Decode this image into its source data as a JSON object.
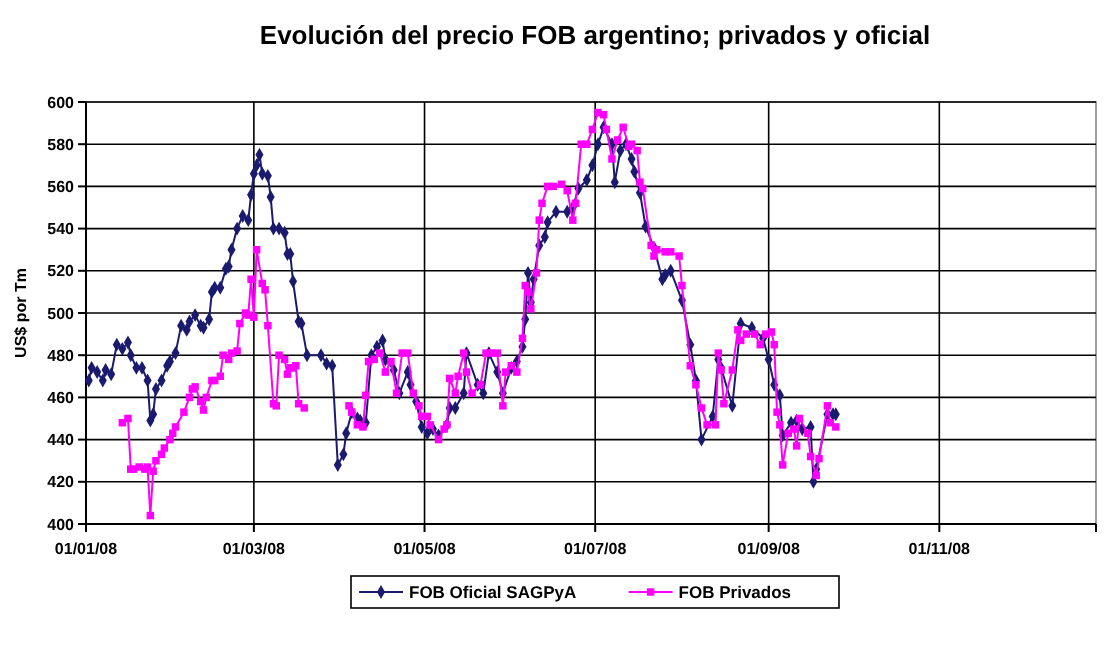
{
  "chart_data": {
    "type": "line",
    "title": "Evolución del precio FOB argentino; privados y oficial",
    "ylabel": "US$ por Tm",
    "xlim": [
      "2008-01-01",
      "2008-12-27"
    ],
    "xticks": [
      {
        "value": "2008-01-01",
        "label": "01/01/08"
      },
      {
        "value": "2008-03-01",
        "label": "01/03/08"
      },
      {
        "value": "2008-05-01",
        "label": "01/05/08"
      },
      {
        "value": "2008-07-01",
        "label": "01/07/08"
      },
      {
        "value": "2008-09-01",
        "label": "01/09/08"
      },
      {
        "value": "2008-11-01",
        "label": "01/11/08"
      }
    ],
    "ylim": [
      400,
      600
    ],
    "yticks": [
      400,
      420,
      440,
      460,
      480,
      500,
      520,
      540,
      560,
      580,
      600
    ],
    "grid": true,
    "legend": "bottom",
    "line_style": "solid",
    "series": [
      {
        "name": "FOB Oficial SAGPyA",
        "color": "#1a1a6e",
        "marker": "diamond",
        "x": [
          "2008-01-02",
          "2008-01-03",
          "2008-01-05",
          "2008-01-07",
          "2008-01-08",
          "2008-01-10",
          "2008-01-12",
          "2008-01-14",
          "2008-01-16",
          "2008-01-17",
          "2008-01-19",
          "2008-01-21",
          "2008-01-23",
          "2008-01-24",
          "2008-01-25",
          "2008-01-26",
          "2008-01-28",
          "2008-01-30",
          "2008-01-31",
          "2008-02-02",
          "2008-02-04",
          "2008-02-06",
          "2008-02-07",
          "2008-02-09",
          "2008-02-11",
          "2008-02-12",
          "2008-02-14",
          "2008-02-15",
          "2008-02-16",
          "2008-02-18",
          "2008-02-20",
          "2008-02-21",
          "2008-02-22",
          "2008-02-24",
          "2008-02-26",
          "2008-02-28",
          "2008-02-29",
          "2008-03-01",
          "2008-03-02",
          "2008-03-03",
          "2008-03-04",
          "2008-03-06",
          "2008-03-07",
          "2008-03-08",
          "2008-03-10",
          "2008-03-12",
          "2008-03-13",
          "2008-03-14",
          "2008-03-15",
          "2008-03-17",
          "2008-03-18",
          "2008-03-20",
          "2008-03-25",
          "2008-03-27",
          "2008-03-29",
          "2008-03-31",
          "2008-04-02",
          "2008-04-03",
          "2008-04-05",
          "2008-04-07",
          "2008-04-08",
          "2008-04-10",
          "2008-04-12",
          "2008-04-14",
          "2008-04-16",
          "2008-04-17",
          "2008-04-20",
          "2008-04-22",
          "2008-04-25",
          "2008-04-26",
          "2008-04-28",
          "2008-04-30",
          "2008-05-02",
          "2008-05-04",
          "2008-05-06",
          "2008-05-09",
          "2008-05-10",
          "2008-05-12",
          "2008-05-15",
          "2008-05-16",
          "2008-05-20",
          "2008-05-22",
          "2008-05-24",
          "2008-05-27",
          "2008-05-29",
          "2008-06-01",
          "2008-06-03",
          "2008-06-05",
          "2008-06-06",
          "2008-06-07",
          "2008-06-08",
          "2008-06-09",
          "2008-06-11",
          "2008-06-13",
          "2008-06-14",
          "2008-06-17",
          "2008-06-21",
          "2008-06-23",
          "2008-06-25",
          "2008-06-28",
          "2008-06-30",
          "2008-07-02",
          "2008-07-04",
          "2008-07-07",
          "2008-07-08",
          "2008-07-10",
          "2008-07-12",
          "2008-07-14",
          "2008-07-15",
          "2008-07-17",
          "2008-07-19",
          "2008-07-22",
          "2008-07-25",
          "2008-07-26",
          "2008-07-28",
          "2008-08-01",
          "2008-08-04",
          "2008-08-06",
          "2008-08-08",
          "2008-08-12",
          "2008-08-14",
          "2008-08-15",
          "2008-08-19",
          "2008-08-22",
          "2008-08-26",
          "2008-08-30",
          "2008-09-01",
          "2008-09-03",
          "2008-09-05",
          "2008-09-06",
          "2008-09-09",
          "2008-09-11",
          "2008-09-13",
          "2008-09-16",
          "2008-09-17",
          "2008-09-18",
          "2008-09-22",
          "2008-09-24",
          "2008-09-25"
        ],
        "values": [
          468,
          474,
          472,
          468,
          473,
          471,
          485,
          483,
          486,
          480,
          474,
          474,
          468,
          449,
          452,
          464,
          468,
          475,
          477,
          481,
          494,
          492,
          496,
          499,
          494,
          493,
          497,
          510,
          512,
          512,
          521,
          522,
          530,
          540,
          546,
          544,
          556,
          566,
          570,
          575,
          566,
          565,
          555,
          540,
          540,
          538,
          528,
          528,
          515,
          496,
          495,
          480,
          480,
          476,
          475,
          428,
          433,
          443,
          453,
          450,
          449,
          448,
          480,
          484,
          487,
          478,
          473,
          462,
          472,
          466,
          458,
          446,
          443,
          445,
          442,
          447,
          455,
          455,
          462,
          481,
          466,
          462,
          481,
          472,
          462,
          474,
          477,
          484,
          497,
          519,
          505,
          516,
          532,
          536,
          543,
          548,
          548,
          550,
          559,
          563,
          570,
          580,
          588,
          580,
          562,
          577,
          580,
          573,
          567,
          557,
          541,
          531,
          516,
          518,
          520,
          506,
          485,
          468,
          440,
          451,
          478,
          474,
          456,
          495,
          493,
          488,
          478,
          466,
          461,
          442,
          448,
          449,
          445,
          446,
          420,
          426,
          452,
          452,
          452
        ]
      },
      {
        "name": "FOB Privados",
        "color": "#ff00ff",
        "marker": "square",
        "x": [
          "2008-01-14",
          "2008-01-16",
          "2008-01-17",
          "2008-01-18",
          "2008-01-20",
          "2008-01-22",
          "2008-01-23",
          "2008-01-24",
          "2008-01-25",
          "2008-01-26",
          "2008-01-28",
          "2008-01-29",
          "2008-01-31",
          "2008-02-01",
          "2008-02-02",
          "2008-02-05",
          "2008-02-07",
          "2008-02-08",
          "2008-02-09",
          "2008-02-11",
          "2008-02-12",
          "2008-02-13",
          "2008-02-15",
          "2008-02-16",
          "2008-02-18",
          "2008-02-19",
          "2008-02-21",
          "2008-02-22",
          "2008-02-24",
          "2008-02-25",
          "2008-02-27",
          "2008-02-28",
          "2008-02-29",
          "2008-03-01",
          "2008-03-02",
          "2008-03-04",
          "2008-03-05",
          "2008-03-06",
          "2008-03-08",
          "2008-03-09",
          "2008-03-10",
          "2008-03-12",
          "2008-03-13",
          "2008-03-14",
          "2008-03-15",
          "2008-03-16",
          "2008-03-17",
          "2008-03-19",
          "2008-03-29",
          "2008-04-04",
          "2008-04-05",
          "2008-04-07",
          "2008-04-09",
          "2008-04-10",
          "2008-04-11",
          "2008-04-13",
          "2008-04-15",
          "2008-04-17",
          "2008-04-19",
          "2008-04-21",
          "2008-04-23",
          "2008-04-25",
          "2008-04-27",
          "2008-04-29",
          "2008-04-30",
          "2008-05-02",
          "2008-05-03",
          "2008-05-06",
          "2008-05-08",
          "2008-05-09",
          "2008-05-10",
          "2008-05-12",
          "2008-05-13",
          "2008-05-15",
          "2008-05-16",
          "2008-05-18",
          "2008-05-21",
          "2008-05-23",
          "2008-05-25",
          "2008-05-27",
          "2008-05-29",
          "2008-05-30",
          "2008-06-01",
          "2008-06-03",
          "2008-06-05",
          "2008-06-06",
          "2008-06-07",
          "2008-06-08",
          "2008-06-10",
          "2008-06-11",
          "2008-06-12",
          "2008-06-14",
          "2008-06-16",
          "2008-06-19",
          "2008-06-21",
          "2008-06-23",
          "2008-06-24",
          "2008-06-26",
          "2008-06-28",
          "2008-06-30",
          "2008-07-02",
          "2008-07-04",
          "2008-07-05",
          "2008-07-07",
          "2008-07-09",
          "2008-07-11",
          "2008-07-13",
          "2008-07-14",
          "2008-07-16",
          "2008-07-17",
          "2008-07-18",
          "2008-07-21",
          "2008-07-22",
          "2008-07-23",
          "2008-07-26",
          "2008-07-28",
          "2008-07-31",
          "2008-08-01",
          "2008-08-04",
          "2008-08-06",
          "2008-08-08",
          "2008-08-10",
          "2008-08-13",
          "2008-08-14",
          "2008-08-15",
          "2008-08-16",
          "2008-08-19",
          "2008-08-21",
          "2008-08-22",
          "2008-08-24",
          "2008-08-27",
          "2008-08-29",
          "2008-08-31",
          "2008-09-02",
          "2008-09-03",
          "2008-09-04",
          "2008-09-05",
          "2008-09-06",
          "2008-09-08",
          "2008-09-10",
          "2008-09-11",
          "2008-09-12",
          "2008-09-15",
          "2008-09-16",
          "2008-09-18",
          "2008-09-19",
          "2008-09-22",
          "2008-09-23",
          "2008-09-25"
        ],
        "values": [
          448,
          450,
          426,
          426,
          427,
          426,
          427,
          404,
          425,
          430,
          433,
          436,
          440,
          443,
          446,
          453,
          460,
          464,
          465,
          458,
          454,
          460,
          468,
          468,
          470,
          480,
          478,
          481,
          482,
          495,
          500,
          499,
          516,
          498,
          530,
          514,
          511,
          494,
          457,
          456,
          480,
          478,
          471,
          474,
          474,
          475,
          457,
          455,
          null,
          456,
          453,
          447,
          446,
          461,
          477,
          478,
          481,
          472,
          477,
          462,
          481,
          481,
          462,
          456,
          451,
          451,
          447,
          440,
          445,
          447,
          469,
          462,
          470,
          481,
          472,
          462,
          466,
          481,
          481,
          481,
          456,
          472,
          475,
          472,
          488,
          513,
          510,
          502,
          519,
          544,
          552,
          560,
          560,
          561,
          558,
          544,
          552,
          580,
          580,
          587,
          595,
          594,
          587,
          573,
          582,
          588,
          579,
          580,
          577,
          562,
          559,
          532,
          527,
          530,
          529,
          529,
          527,
          513,
          475,
          466,
          455,
          447,
          447,
          481,
          473,
          457,
          473,
          492,
          487,
          490,
          490,
          485,
          490,
          491,
          485,
          453,
          447,
          428,
          443,
          445,
          437,
          450,
          443,
          432,
          423,
          431,
          456,
          448,
          446
        ]
      }
    ]
  }
}
